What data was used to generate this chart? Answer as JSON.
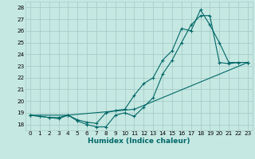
{
  "xlabel": "Humidex (Indice chaleur)",
  "bg_color": "#c6e8e2",
  "grid_color": "#a8ccc8",
  "line_color": "#006868",
  "xlim": [
    -0.5,
    23.5
  ],
  "ylim": [
    17.5,
    28.5
  ],
  "xticks": [
    0,
    1,
    2,
    3,
    4,
    5,
    6,
    7,
    8,
    9,
    10,
    11,
    12,
    13,
    14,
    15,
    16,
    17,
    18,
    19,
    20,
    21,
    22,
    23
  ],
  "yticks": [
    18,
    19,
    20,
    21,
    22,
    23,
    24,
    25,
    26,
    27,
    28
  ],
  "series1_x": [
    0,
    1,
    2,
    3,
    4,
    5,
    6,
    7,
    8,
    9,
    10,
    11,
    12,
    13,
    14,
    15,
    16,
    17,
    18,
    19,
    20,
    21,
    22,
    23
  ],
  "series1_y": [
    18.8,
    18.7,
    18.6,
    18.6,
    18.8,
    18.3,
    18.0,
    17.8,
    17.8,
    18.8,
    19.0,
    18.7,
    19.5,
    20.3,
    22.3,
    23.5,
    25.0,
    26.5,
    27.3,
    27.3,
    23.3,
    23.2,
    23.3,
    23.3
  ],
  "series2_x": [
    0,
    1,
    2,
    3,
    4,
    5,
    6,
    7,
    8,
    9,
    10,
    11,
    12,
    13,
    14,
    15,
    16,
    17,
    18,
    19,
    20,
    21,
    22,
    23
  ],
  "series2_y": [
    18.8,
    18.7,
    18.6,
    18.5,
    18.8,
    18.4,
    18.2,
    18.1,
    19.0,
    19.2,
    19.3,
    20.5,
    21.5,
    22.0,
    23.5,
    24.3,
    26.2,
    26.0,
    27.8,
    26.5,
    25.0,
    23.3,
    23.3,
    23.3
  ],
  "series3_x": [
    0,
    4,
    11,
    23
  ],
  "series3_y": [
    18.8,
    18.8,
    19.3,
    23.3
  ]
}
